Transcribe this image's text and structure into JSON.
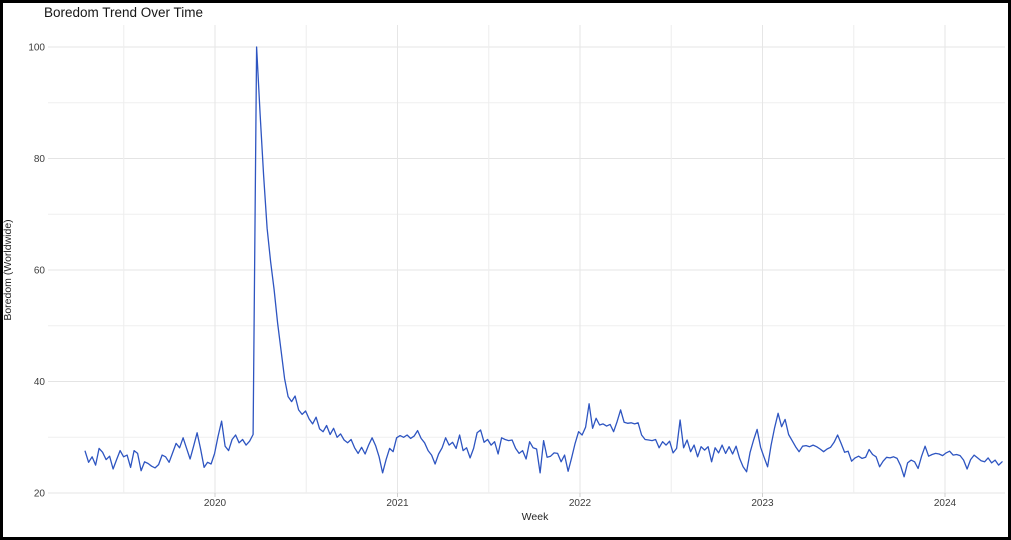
{
  "window": {
    "background": "#ffffff",
    "frame_border_color": "#000000"
  },
  "colors": {
    "line": "#2e55c1",
    "grid_major_h": "#e4e4e4",
    "grid_minor_h": "#efefef",
    "grid_major_v": "#e6e6e6",
    "grid_minor_v": "#eeeeee",
    "tick_text": "#3c3c3c",
    "title_text": "#161616"
  },
  "chart_data": {
    "type": "line",
    "title": "Boredom Trend Over Time",
    "xlabel": "Week",
    "ylabel": "Boredom (Worldwide)",
    "grid": "on",
    "legend": "none",
    "x_unit": "weekly samples expressed as fractional years",
    "x_start": 2019.288,
    "x_step": 0.019178,
    "xlim": [
      2019.16,
      2024.35
    ],
    "ylim": [
      19.3,
      103.8
    ],
    "x_tick_labels": [
      "2020",
      "2021",
      "2022",
      "2023",
      "2024"
    ],
    "x_tick_values": [
      2020,
      2021,
      2022,
      2023,
      2024
    ],
    "x_minor_gridlines": [
      2019.5,
      2020.5,
      2021.5,
      2022.5,
      2023.5
    ],
    "y_tick_labels": [
      "20",
      "40",
      "60",
      "80",
      "100"
    ],
    "y_tick_values": [
      20,
      40,
      60,
      80,
      100
    ],
    "y_minor_gridlines": [
      30,
      50,
      70,
      90
    ],
    "peak_value": 100,
    "peak_x": 2020.23,
    "values": [
      27.5,
      25.5,
      26.5,
      25,
      28,
      27.3,
      26,
      26.6,
      24.3,
      26,
      27.6,
      26.5,
      26.8,
      24.6,
      27.6,
      27.1,
      24,
      25.6,
      25.3,
      24.8,
      24.5,
      25.1,
      26.8,
      26.5,
      25.5,
      27.2,
      28.9,
      28.1,
      29.9,
      28,
      26.1,
      28.4,
      30.8,
      27.9,
      24.6,
      25.5,
      25.2,
      27.1,
      30.2,
      32.9,
      28.4,
      27.6,
      29.6,
      30.4,
      29,
      29.6,
      28.6,
      29.3,
      30.5,
      100,
      88,
      77,
      67.5,
      61.5,
      56.5,
      50.5,
      45.5,
      40.5,
      37.3,
      36.4,
      37.4,
      34.9,
      34.1,
      34.7,
      33.3,
      32.4,
      33.6,
      31.5,
      31,
      32.1,
      30.5,
      31.6,
      30,
      30.6,
      29.5,
      29,
      29.6,
      28.1,
      27.1,
      28.2,
      27,
      28.6,
      29.9,
      28.5,
      26.5,
      23.6,
      26,
      28,
      27.4,
      29.9,
      30.3,
      30,
      30.4,
      29.8,
      30.2,
      31.2,
      29.8,
      29,
      27.6,
      26.8,
      25.2,
      27,
      28.1,
      29.9,
      28.6,
      29.1,
      28,
      30.4,
      27.6,
      28.1,
      26.3,
      28,
      30.8,
      31.3,
      29.1,
      29.6,
      28.6,
      29.2,
      27,
      29.9,
      29.6,
      29.4,
      29.5,
      28,
      27.1,
      27.6,
      26.1,
      29.2,
      28.1,
      27.9,
      23.6,
      29.4,
      26.4,
      26.6,
      27.2,
      27.1,
      25.6,
      26.8,
      23.9,
      26.3,
      28.9,
      31,
      30.4,
      31.8,
      36,
      31.6,
      33.4,
      32.2,
      32.4,
      32,
      32.3,
      31,
      32.8,
      34.9,
      32.7,
      32.5,
      32.6,
      32.4,
      32.6,
      30.4,
      29.6,
      29.5,
      29.4,
      29.6,
      28.1,
      29.2,
      28.6,
      29.3,
      27.2,
      28,
      33.1,
      28.1,
      29.5,
      27.4,
      28.6,
      26.5,
      28.3,
      27.7,
      28.3,
      25.6,
      28.1,
      27.2,
      28.6,
      27.1,
      28.3,
      27,
      28.4,
      26.2,
      24.7,
      23.8,
      27.3,
      29.5,
      31.4,
      28.2,
      26.4,
      24.7,
      28.6,
      31.7,
      34.3,
      31.9,
      33.2,
      30.5,
      29.4,
      28.3,
      27.4,
      28.4,
      28.5,
      28.3,
      28.6,
      28.3,
      27.9,
      27.4,
      27.9,
      28.2,
      29.1,
      30.4,
      28.9,
      27.3,
      27.5,
      25.7,
      26.3,
      26.6,
      26.2,
      26.4,
      27.8,
      26.9,
      26.5,
      24.7,
      25.7,
      26.4,
      26.3,
      26.5,
      26.2,
      24.9,
      22.9,
      25.4,
      25.9,
      25.6,
      24.4,
      26.6,
      28.4,
      26.6,
      26.9,
      27.1,
      27,
      26.7,
      27.2,
      27.5,
      26.8,
      26.9,
      26.7,
      25.9,
      24.3,
      26,
      26.8,
      26.3,
      25.8,
      25.6,
      26.3,
      25.4,
      25.9,
      25,
      25.6
    ]
  }
}
